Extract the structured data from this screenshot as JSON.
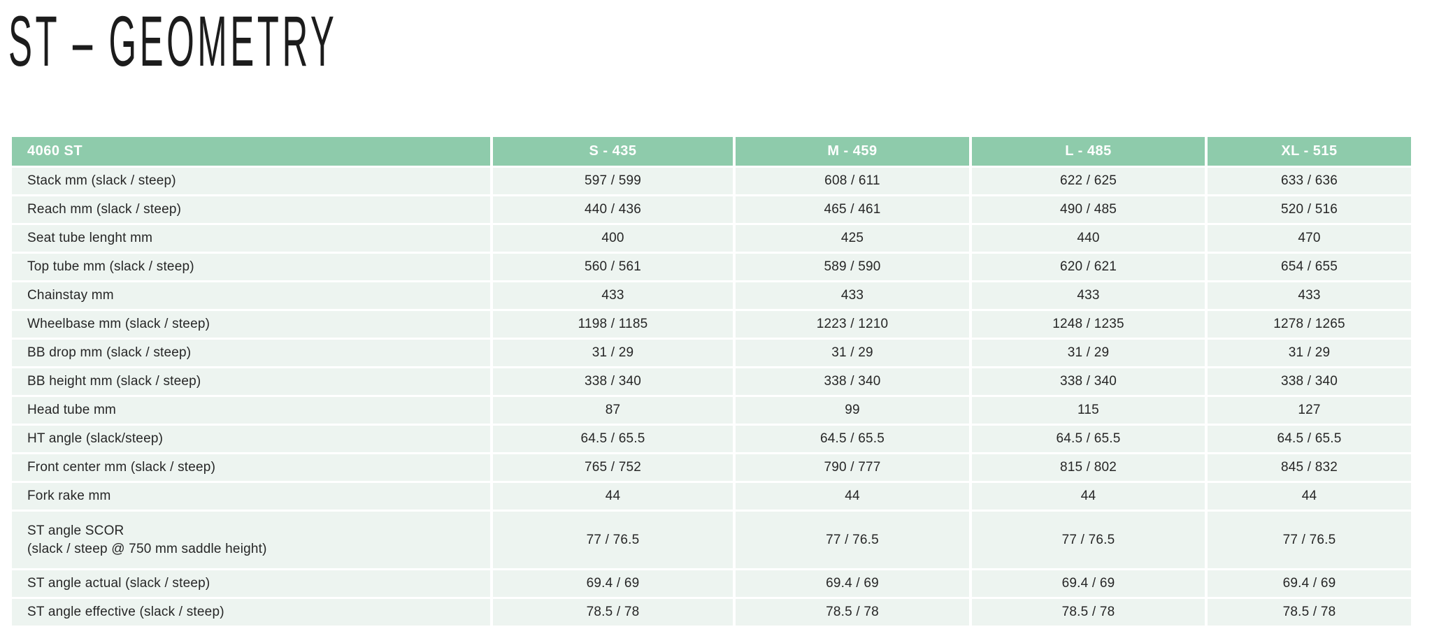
{
  "page": {
    "title": "ST – GEOMETRY"
  },
  "colors": {
    "header_bg": "#8ecbab",
    "header_text": "#ffffff",
    "row_bg": "#edf4f0",
    "body_text": "#262626",
    "page_bg": "#ffffff"
  },
  "table": {
    "model": "4060 ST",
    "columns": [
      "S - 435",
      "M - 459",
      "L - 485",
      "XL - 515"
    ],
    "rows": [
      {
        "label": "Stack mm (slack / steep)",
        "values": [
          "597 / 599",
          "608 / 611",
          "622 / 625",
          "633 / 636"
        ]
      },
      {
        "label": "Reach mm (slack / steep)",
        "values": [
          "440 / 436",
          "465 / 461",
          "490 / 485",
          "520 / 516"
        ]
      },
      {
        "label": "Seat tube lenght mm",
        "values": [
          "400",
          "425",
          "440",
          "470"
        ]
      },
      {
        "label": "Top tube mm (slack / steep)",
        "values": [
          "560 / 561",
          "589 / 590",
          "620 / 621",
          "654 / 655"
        ]
      },
      {
        "label": "Chainstay mm",
        "values": [
          "433",
          "433",
          "433",
          "433"
        ]
      },
      {
        "label": "Wheelbase mm (slack / steep)",
        "values": [
          "1198 / 1185",
          "1223 / 1210",
          "1248 / 1235",
          "1278 / 1265"
        ]
      },
      {
        "label": "BB drop mm (slack / steep)",
        "values": [
          "31 / 29",
          "31 / 29",
          "31 / 29",
          "31 / 29"
        ]
      },
      {
        "label": "BB height mm (slack / steep)",
        "values": [
          "338 / 340",
          "338 / 340",
          "338 / 340",
          "338 / 340"
        ]
      },
      {
        "label": "Head tube mm",
        "values": [
          "87",
          "99",
          "115",
          "127"
        ]
      },
      {
        "label": "HT angle (slack/steep)",
        "values": [
          "64.5 / 65.5",
          "64.5 / 65.5",
          "64.5 / 65.5",
          "64.5 / 65.5"
        ]
      },
      {
        "label": "Front center mm (slack / steep)",
        "values": [
          "765 / 752",
          "790 / 777",
          "815 / 802",
          "845 / 832"
        ]
      },
      {
        "label": "Fork rake mm",
        "values": [
          "44",
          "44",
          "44",
          "44"
        ]
      },
      {
        "label": "ST angle SCOR",
        "label2": "(slack / steep @ 750 mm saddle height)",
        "values": [
          "77 / 76.5",
          "77 / 76.5",
          "77 / 76.5",
          "77 / 76.5"
        ]
      },
      {
        "label": "ST angle actual (slack / steep)",
        "values": [
          "69.4 / 69",
          "69.4 / 69",
          "69.4 / 69",
          "69.4 / 69"
        ]
      },
      {
        "label": "ST angle effective (slack / steep)",
        "values": [
          "78.5 / 78",
          "78.5 / 78",
          "78.5 / 78",
          "78.5 / 78"
        ]
      }
    ]
  }
}
